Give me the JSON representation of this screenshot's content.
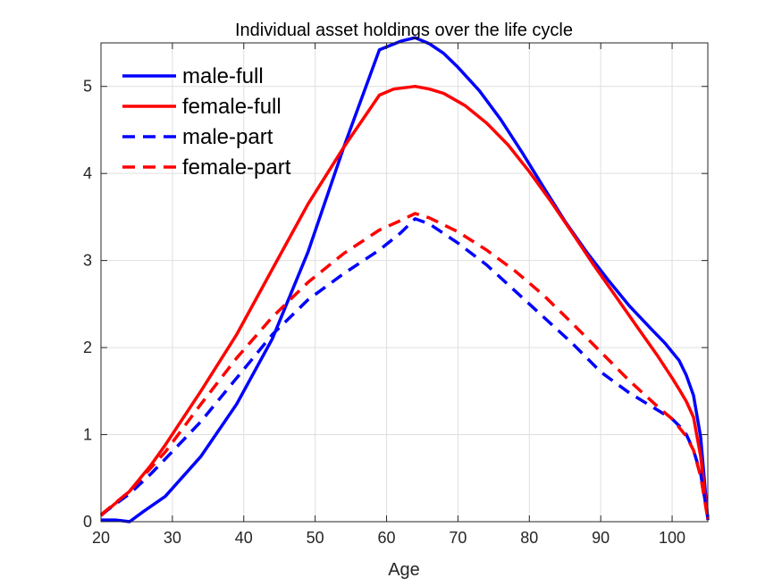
{
  "chart_data": {
    "type": "line",
    "title": "Individual asset holdings over the life cycle",
    "xlabel": "Age",
    "ylabel": "",
    "xlim": [
      20,
      105
    ],
    "ylim": [
      0,
      5.5
    ],
    "xticks": [
      20,
      30,
      40,
      50,
      60,
      70,
      80,
      90,
      100
    ],
    "yticks": [
      0,
      1,
      2,
      3,
      4,
      5
    ],
    "grid": true,
    "legend_position": "top-left",
    "series": [
      {
        "name": "male-full",
        "color": "#0000ff",
        "dash": "solid",
        "x": [
          20,
          22,
          23,
          24,
          26,
          29,
          34,
          39,
          44,
          49,
          54,
          59,
          62,
          64,
          66,
          68,
          70,
          73,
          76,
          79,
          82,
          85,
          88,
          91,
          94,
          97,
          99,
          100,
          101,
          102,
          103,
          104,
          105
        ],
        "y": [
          0.02,
          0.02,
          0.01,
          0.0,
          0.12,
          0.29,
          0.75,
          1.35,
          2.1,
          3.1,
          4.3,
          5.42,
          5.52,
          5.56,
          5.49,
          5.38,
          5.22,
          4.95,
          4.62,
          4.24,
          3.84,
          3.45,
          3.1,
          2.78,
          2.48,
          2.22,
          2.05,
          1.95,
          1.85,
          1.68,
          1.45,
          0.97,
          0.02
        ]
      },
      {
        "name": "female-full",
        "color": "#ff0000",
        "dash": "solid",
        "x": [
          20,
          24,
          27,
          29,
          34,
          39,
          44,
          49,
          54,
          59,
          61,
          64,
          66,
          68,
          71,
          74,
          77,
          80,
          83,
          86,
          89,
          92,
          95,
          98,
          100,
          101,
          102,
          103,
          104,
          105
        ],
        "y": [
          0.07,
          0.35,
          0.65,
          0.88,
          1.5,
          2.15,
          2.9,
          3.65,
          4.3,
          4.9,
          4.97,
          5.0,
          4.97,
          4.92,
          4.78,
          4.58,
          4.33,
          4.02,
          3.68,
          3.32,
          2.95,
          2.6,
          2.25,
          1.9,
          1.65,
          1.52,
          1.38,
          1.2,
          0.75,
          0.03
        ]
      },
      {
        "name": "male-part",
        "color": "#0000ff",
        "dash": "dashed",
        "x": [
          20,
          24,
          27,
          29,
          34,
          39,
          44,
          49,
          54,
          59,
          62,
          64,
          66,
          70,
          74,
          78,
          82,
          86,
          90,
          94,
          98,
          100,
          101,
          102,
          103,
          104,
          105
        ],
        "y": [
          0.08,
          0.32,
          0.55,
          0.72,
          1.15,
          1.65,
          2.15,
          2.55,
          2.85,
          3.12,
          3.32,
          3.48,
          3.42,
          3.2,
          2.95,
          2.65,
          2.35,
          2.05,
          1.72,
          1.48,
          1.28,
          1.18,
          1.1,
          1.0,
          0.82,
          0.55,
          0.05
        ]
      },
      {
        "name": "female-part",
        "color": "#ff0000",
        "dash": "dashed",
        "x": [
          20,
          24,
          27,
          29,
          34,
          39,
          44,
          49,
          54,
          59,
          62,
          64,
          66,
          70,
          74,
          78,
          82,
          86,
          90,
          94,
          98,
          100,
          101,
          102,
          103,
          104,
          105
        ],
        "y": [
          0.08,
          0.35,
          0.62,
          0.8,
          1.35,
          1.88,
          2.35,
          2.75,
          3.08,
          3.35,
          3.46,
          3.54,
          3.49,
          3.33,
          3.12,
          2.88,
          2.6,
          2.28,
          1.95,
          1.62,
          1.32,
          1.18,
          1.08,
          0.98,
          0.82,
          0.52,
          0.03
        ]
      }
    ]
  }
}
